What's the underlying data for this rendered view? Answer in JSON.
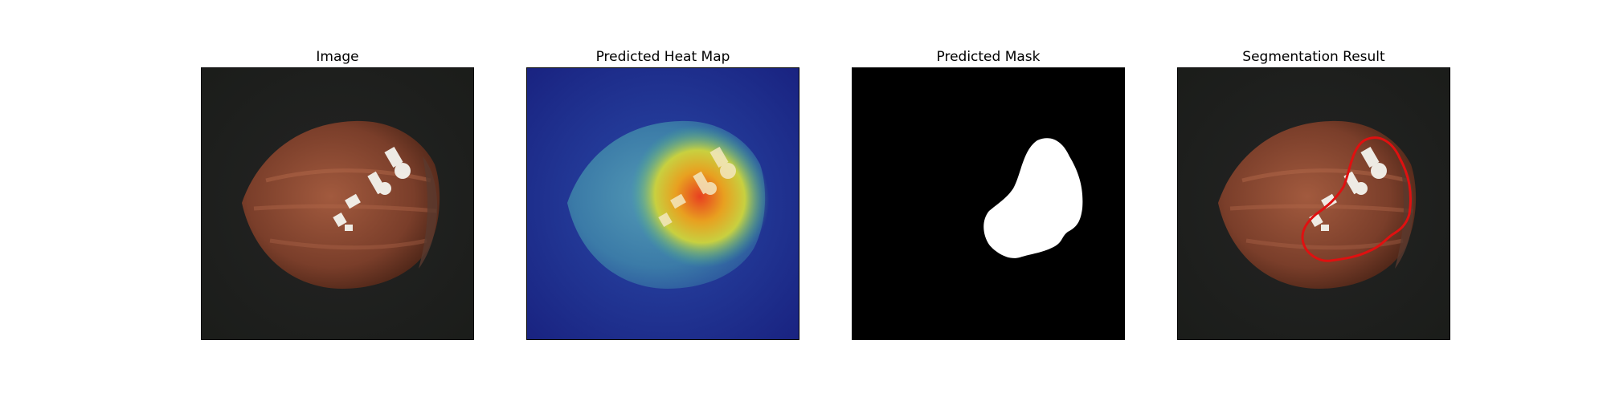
{
  "panels": [
    {
      "title": "Image"
    },
    {
      "title": "Predicted Heat Map"
    },
    {
      "title": "Predicted Mask"
    },
    {
      "title": "Segmentation Result"
    }
  ],
  "colors": {
    "background_dark": "#1d1d1d",
    "nut_brown": "#8a4a35",
    "heat_low": "#1a2a8c",
    "heat_high": "#e8a020",
    "mask_fg": "#ffffff",
    "mask_bg": "#000000",
    "contour": "#e01010"
  }
}
